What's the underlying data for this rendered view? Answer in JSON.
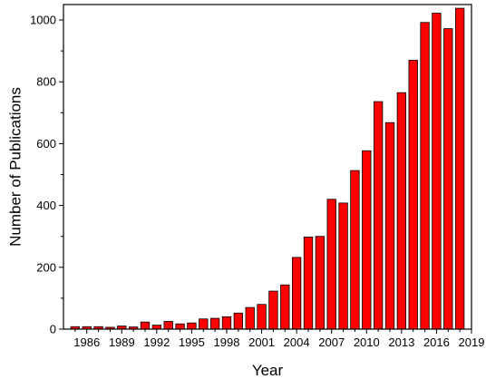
{
  "chart_data": {
    "type": "bar",
    "title": "",
    "xlabel": "Year",
    "ylabel": "Number of Publications",
    "x": [
      1985,
      1986,
      1987,
      1988,
      1989,
      1990,
      1991,
      1992,
      1993,
      1994,
      1995,
      1996,
      1997,
      1998,
      1999,
      2000,
      2001,
      2002,
      2003,
      2004,
      2005,
      2006,
      2007,
      2008,
      2009,
      2010,
      2011,
      2012,
      2013,
      2014,
      2015,
      2016,
      2017,
      2018
    ],
    "values": [
      8,
      8,
      8,
      6,
      10,
      7,
      23,
      13,
      25,
      17,
      20,
      33,
      35,
      40,
      52,
      70,
      80,
      123,
      143,
      232,
      298,
      300,
      420,
      408,
      513,
      577,
      736,
      668,
      765,
      870,
      992,
      1022,
      972,
      1038
    ],
    "xticks": [
      1986,
      1989,
      1992,
      1995,
      1998,
      2001,
      2004,
      2007,
      2010,
      2013,
      2016,
      2019
    ],
    "yticks": [
      0,
      200,
      400,
      600,
      800,
      1000
    ],
    "xlim": [
      1984,
      2019
    ],
    "ylim": [
      0,
      1050
    ],
    "bar_color": "#ff0000",
    "bar_edge_color": "#000000",
    "grid": false,
    "legend": false
  }
}
